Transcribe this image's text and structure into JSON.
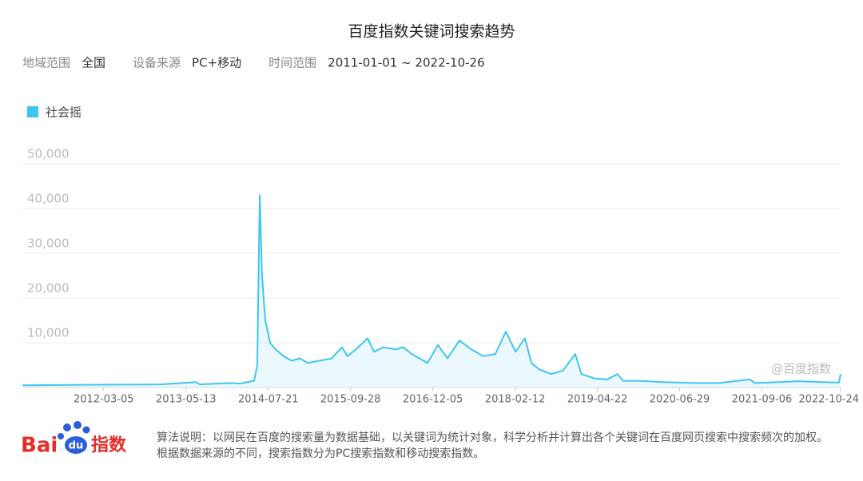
{
  "chart_data": {
    "type": "line",
    "title": "百度指数关键词搜索趋势",
    "filters": [
      {
        "label": "地域范围",
        "value": "全国"
      },
      {
        "label": "设备来源",
        "value": "PC+移动"
      },
      {
        "label": "时间范围",
        "value": "2011-01-01 ~ 2022-10-26"
      }
    ],
    "xlim": [
      "2011-01-01",
      "2022-10-26"
    ],
    "xticks": [
      "2012-03-05",
      "2013-05-13",
      "2014-07-21",
      "2015-09-28",
      "2016-12-05",
      "2018-02-12",
      "2019-04-22",
      "2020-06-29",
      "2021-09-06",
      "2022-10-24"
    ],
    "ylim": [
      0,
      50000
    ],
    "yticks": [
      {
        "value": 10000,
        "label": "10,000"
      },
      {
        "value": 20000,
        "label": "20,000"
      },
      {
        "value": 30000,
        "label": "30,000"
      },
      {
        "value": 40000,
        "label": "40,000"
      },
      {
        "value": 50000,
        "label": "50,000"
      }
    ],
    "grid": true,
    "x": [
      "2011-01-01",
      "2011-10-31",
      "2012-12-26",
      "2013-07-04",
      "2013-07-25",
      "2014-01-09",
      "2014-02-20",
      "2014-05-07",
      "2014-05-24",
      "2014-06-06",
      "2014-06-18",
      "2014-07-05",
      "2014-07-31",
      "2014-08-29",
      "2014-10-10",
      "2014-11-21",
      "2015-01-03",
      "2015-02-14",
      "2015-04-18",
      "2015-06-20",
      "2015-08-14",
      "2015-09-12",
      "2015-10-25",
      "2015-12-27",
      "2016-01-30",
      "2016-03-20",
      "2016-05-22",
      "2016-07-03",
      "2016-08-15",
      "2016-09-26",
      "2016-11-07",
      "2017-01-01",
      "2017-02-20",
      "2017-04-24",
      "2017-06-27",
      "2017-08-29",
      "2017-10-31",
      "2017-12-25",
      "2018-02-14",
      "2018-04-05",
      "2018-05-09",
      "2018-06-20",
      "2018-08-21",
      "2018-10-23",
      "2018-12-26",
      "2019-01-28",
      "2019-04-10",
      "2019-06-12",
      "2019-08-06",
      "2019-09-04",
      "2019-11-28",
      "2020-04-03",
      "2020-09-19",
      "2021-01-23",
      "2021-07-03",
      "2021-08-02",
      "2021-12-06",
      "2022-03-21",
      "2022-07-25",
      "2022-10-17",
      "2022-10-26"
    ],
    "series": [
      {
        "name": "社会摇",
        "color": "#3ec6f2",
        "values": [
          500,
          600,
          700,
          1200,
          700,
          1000,
          900,
          1500,
          5000,
          43000,
          25000,
          15000,
          10000,
          8500,
          7000,
          6000,
          6500,
          5500,
          6000,
          6500,
          9000,
          7000,
          8500,
          11000,
          8000,
          9000,
          8500,
          9000,
          7500,
          6500,
          5500,
          9500,
          6500,
          10500,
          8500,
          7000,
          7500,
          12500,
          8000,
          11000,
          5500,
          4000,
          3000,
          3800,
          7500,
          3000,
          2000,
          1800,
          3000,
          1500,
          1500,
          1200,
          1000,
          1000,
          1800,
          1000,
          1200,
          1400,
          1200,
          1100,
          3000
        ]
      }
    ],
    "watermark": "@百度指数"
  },
  "footer": {
    "logo": [
      "Bai",
      "du",
      "指数"
    ],
    "note": "算法说明：以网民在百度的搜索量为数据基础，以关键词为统计对象，科学分析并计算出各个关键词在百度网页搜索中搜索频次的加权。根据数据来源的不同，搜索指数分为PC搜索指数和移动搜索指数。"
  }
}
